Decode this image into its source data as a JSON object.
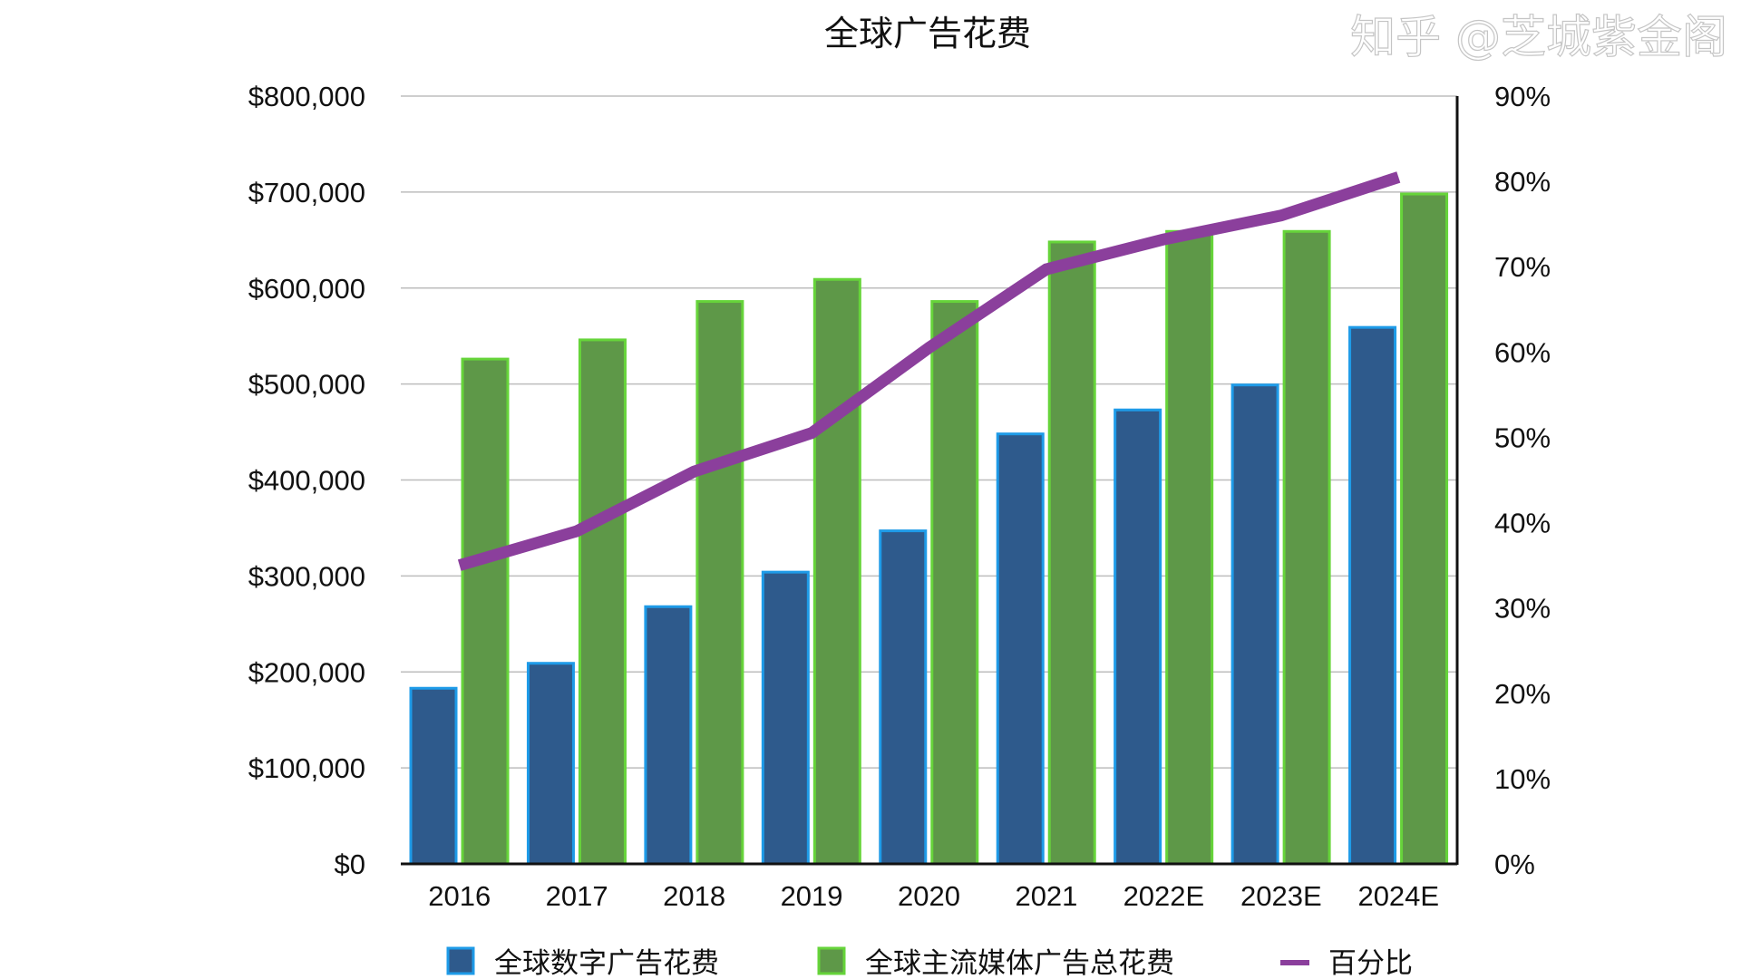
{
  "chart_data": {
    "type": "bar",
    "title": "全球广告花费",
    "categories": [
      "2016",
      "2017",
      "2018",
      "2019",
      "2020",
      "2021",
      "2022E",
      "2023E",
      "2024E"
    ],
    "y_left": {
      "range": [
        0,
        800000
      ],
      "ticks": [
        "$0",
        "$100,000",
        "$200,000",
        "$300,000",
        "$400,000",
        "$500,000",
        "$600,000",
        "$700,000",
        "$800,000"
      ]
    },
    "y_right": {
      "range": [
        0,
        90
      ],
      "unit": "%",
      "ticks": [
        "0%",
        "10%",
        "20%",
        "30%",
        "40%",
        "50%",
        "60%",
        "70%",
        "80%",
        "90%"
      ]
    },
    "grid": true,
    "legend_placement": "bottom",
    "series": [
      {
        "name": "全球数字广告花费",
        "type": "bar",
        "axis": "left",
        "color": "#2e5a8c",
        "edge": "#1e9be8",
        "values": [
          183000,
          209000,
          268000,
          304000,
          347000,
          448000,
          473000,
          499000,
          559000
        ]
      },
      {
        "name": "全球主流媒体广告总花费",
        "type": "bar",
        "axis": "left",
        "color": "#5e9848",
        "edge": "#66d43a",
        "values": [
          526000,
          546000,
          586000,
          609000,
          586000,
          648000,
          659000,
          659000,
          698000
        ]
      },
      {
        "name": "百分比",
        "type": "line",
        "axis": "right",
        "color": "#8b3f9c",
        "values": [
          35,
          39,
          46,
          50.5,
          60.5,
          69.7,
          73.2,
          76,
          80.5
        ]
      }
    ]
  },
  "watermark": "知乎 @芝城紫金阁"
}
